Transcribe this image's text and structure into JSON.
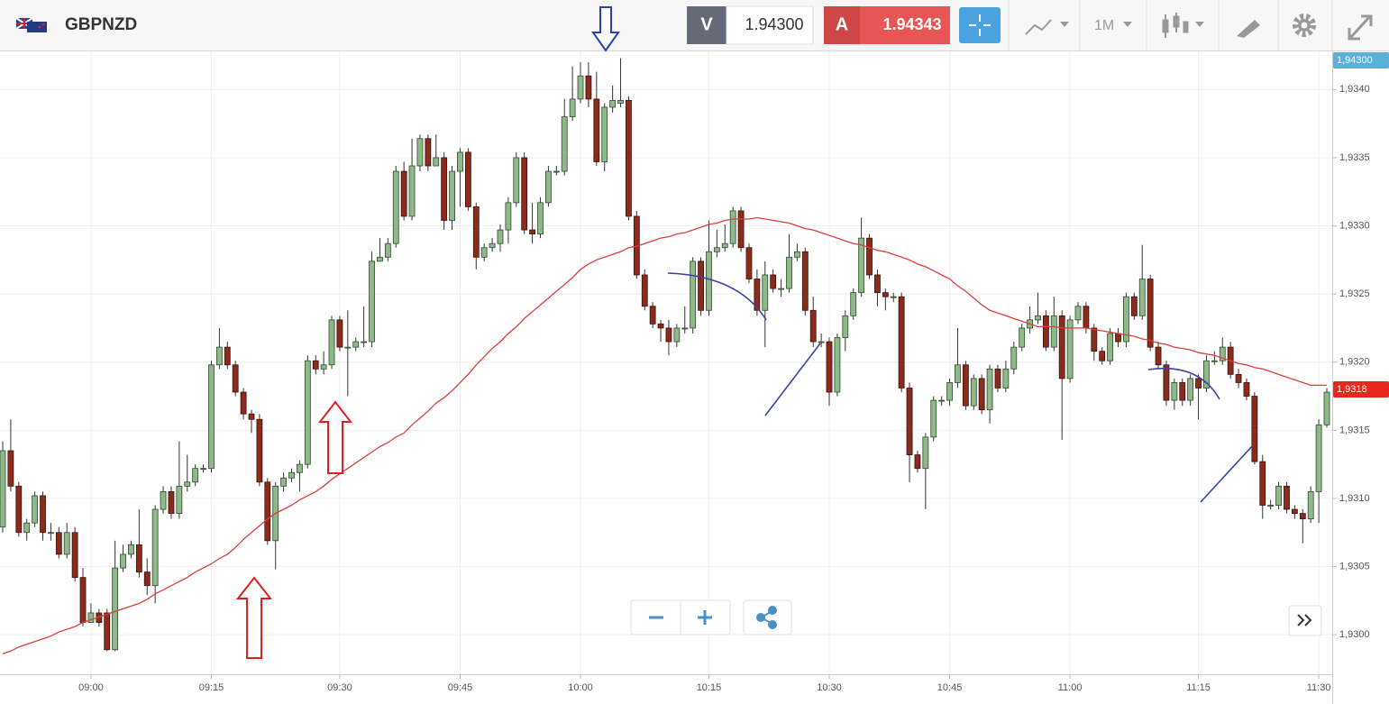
{
  "header": {
    "symbol": "GBPNZD",
    "bid_label": "V",
    "bid": "1.94300",
    "ask_label": "A",
    "ask": "1.94343",
    "timeframe": "1M"
  },
  "chart_data": {
    "type": "candlestick",
    "categories": [
      null,
      null,
      null,
      null,
      null,
      null,
      null,
      null,
      null,
      null,
      null,
      "09:00",
      null,
      null,
      null,
      null,
      null,
      null,
      null,
      null,
      null,
      null,
      null,
      null,
      null,
      null,
      "09:15",
      null,
      null,
      null,
      null,
      null,
      null,
      null,
      null,
      null,
      null,
      null,
      null,
      null,
      null,
      null,
      "09:30",
      null,
      null,
      null,
      null,
      null,
      null,
      null,
      null,
      null,
      null,
      null,
      null,
      null,
      null,
      "09:45",
      null,
      null,
      null,
      null,
      null,
      null,
      null,
      null,
      null,
      null,
      null,
      null,
      null,
      null,
      "10:00",
      null,
      null,
      null,
      null,
      null,
      null,
      null,
      null,
      null,
      null,
      null,
      null,
      null,
      null,
      null,
      "10:15",
      null,
      null,
      null,
      null,
      null,
      null,
      null,
      null,
      null,
      null,
      null,
      null,
      null,
      null,
      "10:30",
      null,
      null,
      null,
      null,
      null,
      null,
      null,
      null,
      null,
      null,
      null,
      null,
      null,
      null,
      "10:45",
      null,
      null,
      null,
      null,
      null,
      null,
      null,
      null,
      null,
      null,
      null,
      null,
      null,
      null,
      "11:00",
      null,
      null,
      null,
      null,
      null,
      null,
      null,
      null,
      null,
      null,
      null,
      null,
      null,
      null,
      null,
      "11:15",
      null,
      null,
      null,
      null,
      null,
      null,
      null,
      null,
      null,
      null,
      null,
      null,
      null,
      null,
      "11:30",
      null
    ],
    "open": [
      1.93079,
      1.93135,
      1.93109,
      1.93075,
      1.93082,
      1.93102,
      1.93075,
      1.93075,
      1.93059,
      1.93075,
      1.93042,
      1.93009,
      1.93016,
      1.93016,
      1.92989,
      1.93049,
      1.93059,
      1.93066,
      1.93046,
      1.93036,
      1.93092,
      1.93105,
      1.93089,
      1.93109,
      1.93112,
      1.93122,
      1.93122,
      1.93198,
      1.93211,
      1.93198,
      1.93178,
      1.93162,
      1.93158,
      1.93112,
      1.93069,
      1.93109,
      1.93115,
      1.93119,
      1.93125,
      1.93201,
      1.93195,
      1.93198,
      1.93231,
      1.93211,
      1.93211,
      1.93215,
      1.93215,
      1.93274,
      1.93277,
      1.93287,
      1.9334,
      1.93307,
      1.93344,
      1.93364,
      1.93344,
      1.9335,
      1.93304,
      1.9334,
      1.93354,
      1.93314,
      1.93277,
      1.93284,
      1.93287,
      1.93297,
      1.93317,
      1.9335,
      1.93297,
      1.93294,
      1.93317,
      1.9334,
      1.9334,
      1.9338,
      1.93393,
      1.9341,
      1.93393,
      1.93347,
      1.93387,
      1.9339,
      1.93392,
      1.93307,
      1.93264,
      1.93241,
      1.93228,
      1.93225,
      1.93215,
      1.93225,
      1.93225,
      1.93274,
      1.93238,
      1.93281,
      1.93284,
      1.93287,
      1.93311,
      1.93284,
      1.93261,
      1.93238,
      1.93264,
      1.93254,
      1.93254,
      1.93277,
      1.93281,
      1.93238,
      1.93215,
      1.93215,
      1.93178,
      1.93218,
      1.93234,
      1.93251,
      1.93291,
      1.93264,
      1.93251,
      1.93248,
      1.93248,
      1.93181,
      1.93132,
      1.93122,
      1.93145,
      1.93172,
      1.93172,
      1.93185,
      1.93198,
      1.93168,
      1.93188,
      1.93165,
      1.93195,
      1.93181,
      1.93195,
      1.93211,
      1.93225,
      1.93231,
      1.93234,
      1.93211,
      1.93234,
      1.93188,
      1.93231,
      1.93241,
      1.93225,
      1.93208,
      1.93201,
      1.93221,
      1.93215,
      1.93248,
      1.93234,
      1.93261,
      1.93211,
      1.93198,
      1.93172,
      1.93185,
      1.93172,
      1.93188,
      1.93181,
      1.93201,
      1.93201,
      1.93211,
      1.93191,
      1.93185,
      1.93175,
      1.93127,
      1.93095,
      1.93095,
      1.93109,
      1.93092,
      1.93089,
      1.93085,
      1.93105,
      1.93154
    ],
    "high": [
      1.93142,
      1.93158,
      1.93112,
      1.93085,
      1.93105,
      1.93105,
      1.93082,
      1.93079,
      1.93082,
      1.93079,
      1.93049,
      1.93023,
      1.93019,
      1.93019,
      1.93069,
      1.93066,
      1.93069,
      1.93092,
      1.93056,
      1.93095,
      1.93109,
      1.93109,
      1.93142,
      1.93132,
      1.93125,
      1.93125,
      1.93201,
      1.93225,
      1.93215,
      1.93201,
      1.93181,
      1.93165,
      1.93162,
      1.93115,
      1.93112,
      1.93119,
      1.93122,
      1.93128,
      1.93205,
      1.93205,
      1.93208,
      1.93234,
      1.93234,
      1.93238,
      1.93218,
      1.93241,
      1.93281,
      1.93291,
      1.93291,
      1.93344,
      1.93347,
      1.93364,
      1.93367,
      1.93367,
      1.93367,
      1.93354,
      1.93344,
      1.93357,
      1.93357,
      1.93317,
      1.93287,
      1.93291,
      1.93301,
      1.93321,
      1.93354,
      1.93354,
      1.93317,
      1.93321,
      1.93344,
      1.93344,
      1.93393,
      1.93417,
      1.9342,
      1.9342,
      1.93413,
      1.9339,
      1.93403,
      1.93423,
      1.93395,
      1.93311,
      1.93268,
      1.93244,
      1.93231,
      1.93231,
      1.93228,
      1.93241,
      1.93277,
      1.93277,
      1.93304,
      1.93297,
      1.93301,
      1.93314,
      1.93314,
      1.93287,
      1.93268,
      1.93274,
      1.93268,
      1.93261,
      1.93294,
      1.93287,
      1.93284,
      1.93248,
      1.93221,
      1.93218,
      1.93221,
      1.93238,
      1.93254,
      1.93306,
      1.93294,
      1.93268,
      1.93254,
      1.93251,
      1.93251,
      1.93185,
      1.93135,
      1.93148,
      1.93175,
      1.93175,
      1.93188,
      1.93225,
      1.93201,
      1.93191,
      1.93191,
      1.93198,
      1.93198,
      1.93201,
      1.93215,
      1.93228,
      1.93241,
      1.93251,
      1.93238,
      1.93248,
      1.93238,
      1.93234,
      1.93244,
      1.93244,
      1.93228,
      1.93211,
      1.93225,
      1.93225,
      1.93251,
      1.93251,
      1.93286,
      1.93264,
      1.93215,
      1.93201,
      1.93188,
      1.93188,
      1.93191,
      1.93191,
      1.93205,
      1.93208,
      1.93218,
      1.93215,
      1.93195,
      1.93188,
      1.93178,
      1.93132,
      1.93099,
      1.93112,
      1.93112,
      1.93095,
      1.93092,
      1.93109,
      1.93158,
      1.93181
    ],
    "low": [
      1.93075,
      1.93105,
      1.93072,
      1.93069,
      1.93079,
      1.93069,
      1.93069,
      1.93056,
      1.93056,
      1.93039,
      1.93006,
      1.93009,
      1.93006,
      1.92988,
      1.92988,
      1.93046,
      1.93056,
      1.93042,
      1.93029,
      1.93023,
      1.93089,
      1.93085,
      1.93085,
      1.93105,
      1.93109,
      1.93119,
      1.93119,
      1.93195,
      1.93195,
      1.93175,
      1.93158,
      1.93148,
      1.93109,
      1.93066,
      1.93048,
      1.93105,
      1.93112,
      1.93105,
      1.93122,
      1.93191,
      1.93191,
      1.93195,
      1.93208,
      1.93175,
      1.93208,
      1.93211,
      1.93211,
      1.93274,
      1.93274,
      1.93284,
      1.93304,
      1.93304,
      1.9334,
      1.9334,
      1.93344,
      1.93297,
      1.93297,
      1.93314,
      1.93311,
      1.93268,
      1.93274,
      1.93281,
      1.93281,
      1.93287,
      1.93314,
      1.93294,
      1.93287,
      1.93291,
      1.93314,
      1.93337,
      1.93337,
      1.93377,
      1.9339,
      1.93387,
      1.93344,
      1.9334,
      1.93383,
      1.93387,
      1.93304,
      1.93261,
      1.93238,
      1.93225,
      1.93215,
      1.93205,
      1.93211,
      1.93221,
      1.93221,
      1.93234,
      1.93234,
      1.93277,
      1.93281,
      1.93284,
      1.93281,
      1.93258,
      1.93234,
      1.93211,
      1.93251,
      1.93248,
      1.93251,
      1.93274,
      1.93234,
      1.93211,
      1.93211,
      1.93168,
      1.93175,
      1.93208,
      1.93231,
      1.93248,
      1.93261,
      1.93241,
      1.93238,
      1.93244,
      1.93178,
      1.93112,
      1.93119,
      1.93092,
      1.93142,
      1.93168,
      1.93168,
      1.93181,
      1.93165,
      1.93165,
      1.93162,
      1.93155,
      1.93178,
      1.93178,
      1.93191,
      1.93208,
      1.93221,
      1.93228,
      1.93208,
      1.93208,
      1.93143,
      1.93185,
      1.93228,
      1.93221,
      1.93201,
      1.93198,
      1.93198,
      1.93211,
      1.93211,
      1.93231,
      1.93231,
      1.93208,
      1.93195,
      1.93168,
      1.93165,
      1.93168,
      1.93168,
      1.93158,
      1.93178,
      1.93198,
      1.93198,
      1.93188,
      1.93181,
      1.93172,
      1.93125,
      1.93085,
      1.93092,
      1.93092,
      1.93089,
      1.93085,
      1.93067,
      1.93082,
      1.93082,
      1.93152
    ],
    "close": [
      1.93135,
      1.93109,
      1.93075,
      1.93082,
      1.93102,
      1.93075,
      1.93075,
      1.93059,
      1.93075,
      1.93042,
      1.93009,
      1.93016,
      1.93009,
      1.92989,
      1.93049,
      1.93059,
      1.93066,
      1.93046,
      1.93036,
      1.93092,
      1.93105,
      1.93089,
      1.93109,
      1.93112,
      1.93122,
      1.93122,
      1.93198,
      1.93211,
      1.93198,
      1.93178,
      1.93162,
      1.93158,
      1.93112,
      1.93069,
      1.93109,
      1.93115,
      1.93119,
      1.93125,
      1.93201,
      1.93195,
      1.93198,
      1.93231,
      1.93211,
      1.93211,
      1.93215,
      1.93215,
      1.93274,
      1.93277,
      1.93287,
      1.9334,
      1.93307,
      1.93344,
      1.93364,
      1.93344,
      1.9335,
      1.93304,
      1.9334,
      1.93354,
      1.93314,
      1.93277,
      1.93284,
      1.93287,
      1.93297,
      1.93317,
      1.9335,
      1.93297,
      1.93294,
      1.93317,
      1.9334,
      1.9334,
      1.9338,
      1.93393,
      1.9341,
      1.93393,
      1.93347,
      1.93387,
      1.93392,
      1.93392,
      1.93307,
      1.93264,
      1.93241,
      1.93228,
      1.93225,
      1.93215,
      1.93225,
      1.93225,
      1.93274,
      1.93238,
      1.93281,
      1.93284,
      1.93287,
      1.93311,
      1.93284,
      1.93261,
      1.93238,
      1.93264,
      1.93254,
      1.93254,
      1.93277,
      1.93281,
      1.93238,
      1.93215,
      1.93215,
      1.93178,
      1.93218,
      1.93234,
      1.93251,
      1.93291,
      1.93264,
      1.93251,
      1.93248,
      1.93248,
      1.93181,
      1.93132,
      1.93122,
      1.93145,
      1.93172,
      1.93172,
      1.93185,
      1.93198,
      1.93168,
      1.93188,
      1.93165,
      1.93195,
      1.93181,
      1.93195,
      1.93211,
      1.93225,
      1.93231,
      1.93234,
      1.93211,
      1.93234,
      1.93188,
      1.93231,
      1.93241,
      1.93225,
      1.93208,
      1.93201,
      1.93221,
      1.93215,
      1.93248,
      1.93234,
      1.93261,
      1.93211,
      1.93198,
      1.93172,
      1.93185,
      1.93172,
      1.93188,
      1.93181,
      1.93201,
      1.93201,
      1.93211,
      1.93191,
      1.93185,
      1.93175,
      1.93127,
      1.93095,
      1.93095,
      1.93109,
      1.93092,
      1.93089,
      1.93085,
      1.93105,
      1.93154,
      1.93178
    ],
    "up_color": "#8fb98b",
    "down_color": "#8a2b1c",
    "ma_color": "#d9403a",
    "ma_values": [
      1.92986,
      1.92988,
      1.92991,
      1.92993,
      1.92995,
      1.92997,
      1.92999,
      1.93002,
      1.93004,
      1.93006,
      1.93009,
      1.93011,
      1.93013,
      1.93015,
      1.93017,
      1.93019,
      1.93021,
      1.93023,
      1.93026,
      1.9303,
      1.93033,
      1.93036,
      1.93039,
      1.93042,
      1.93046,
      1.93049,
      1.93052,
      1.93056,
      1.93059,
      1.93064,
      1.9307,
      1.93075,
      1.9308,
      1.93085,
      1.93089,
      1.93092,
      1.93095,
      1.93099,
      1.93102,
      1.93105,
      1.93109,
      1.93114,
      1.93118,
      1.93122,
      1.93126,
      1.9313,
      1.93134,
      1.93138,
      1.93141,
      1.93145,
      1.93148,
      1.93154,
      1.93159,
      1.93164,
      1.9317,
      1.93174,
      1.93179,
      1.93185,
      1.93191,
      1.93198,
      1.93204,
      1.9321,
      1.93215,
      1.93221,
      1.93226,
      1.93232,
      1.93237,
      1.93242,
      1.93247,
      1.93252,
      1.93257,
      1.93262,
      1.93268,
      1.93272,
      1.93275,
      1.93277,
      1.93279,
      1.93281,
      1.93284,
      1.93285,
      1.93287,
      1.93289,
      1.93291,
      1.93292,
      1.93294,
      1.93295,
      1.93297,
      1.93299,
      1.93301,
      1.93302,
      1.93304,
      1.93305,
      1.93305,
      1.93305,
      1.93306,
      1.93305,
      1.93304,
      1.93303,
      1.93302,
      1.933,
      1.93298,
      1.93297,
      1.93295,
      1.93293,
      1.93291,
      1.93289,
      1.93287,
      1.93286,
      1.93284,
      1.93282,
      1.93281,
      1.93279,
      1.93277,
      1.93275,
      1.93272,
      1.9327,
      1.93267,
      1.93264,
      1.93261,
      1.93256,
      1.93252,
      1.93247,
      1.93242,
      1.93238,
      1.93236,
      1.93234,
      1.93232,
      1.9323,
      1.93228,
      1.93226,
      1.93226,
      1.93226,
      1.93225,
      1.93225,
      1.93225,
      1.93225,
      1.93224,
      1.93223,
      1.93222,
      1.93221,
      1.9322,
      1.93219,
      1.93217,
      1.93216,
      1.93214,
      1.93213,
      1.93211,
      1.9321,
      1.93209,
      1.93207,
      1.93206,
      1.93205,
      1.93203,
      1.93201,
      1.93199,
      1.93198,
      1.93196,
      1.93195,
      1.93193,
      1.93191,
      1.93189,
      1.93187,
      1.93185,
      1.93183,
      1.93183,
      1.93183
    ],
    "ylim": [
      1.92971,
      1.93428
    ],
    "yticks": [
      {
        "value": 1.93,
        "label": "1,9300"
      },
      {
        "value": 1.9305,
        "label": "1,9305"
      },
      {
        "value": 1.931,
        "label": "1,9310"
      },
      {
        "value": 1.9315,
        "label": "1,9315"
      },
      {
        "value": 1.932,
        "label": "1,9320"
      },
      {
        "value": 1.9325,
        "label": "1,9325"
      },
      {
        "value": 1.933,
        "label": "1,9330"
      },
      {
        "value": 1.9335,
        "label": "1,9335"
      },
      {
        "value": 1.934,
        "label": "1,9340"
      }
    ],
    "grid": true,
    "price_badges": [
      {
        "label": "1,94300"
      },
      {
        "value": 1.9318,
        "label": "1,9318"
      }
    ]
  }
}
